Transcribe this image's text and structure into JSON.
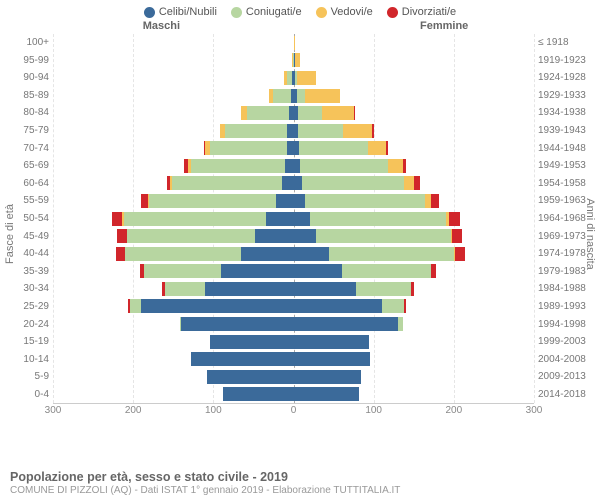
{
  "legend": [
    {
      "label": "Celibi/Nubili",
      "color": "#3b6a9a"
    },
    {
      "label": "Coniugati/e",
      "color": "#b7d6a1"
    },
    {
      "label": "Vedovi/e",
      "color": "#f6c35a"
    },
    {
      "label": "Divorziati/e",
      "color": "#d1262b"
    }
  ],
  "gender": {
    "male": "Maschi",
    "female": "Femmine"
  },
  "axis": {
    "left_title": "Fasce di età",
    "right_title": "Anni di nascita",
    "x_ticks": [
      300,
      200,
      100,
      0,
      100,
      200,
      300
    ],
    "x_max": 300
  },
  "age_labels": [
    "100+",
    "95-99",
    "90-94",
    "85-89",
    "80-84",
    "75-79",
    "70-74",
    "65-69",
    "60-64",
    "55-59",
    "50-54",
    "45-49",
    "40-44",
    "35-39",
    "30-34",
    "25-29",
    "20-24",
    "15-19",
    "10-14",
    "5-9",
    "0-4"
  ],
  "birth_labels": [
    "≤ 1918",
    "1919-1923",
    "1924-1928",
    "1929-1933",
    "1934-1938",
    "1939-1943",
    "1944-1948",
    "1949-1953",
    "1954-1958",
    "1959-1963",
    "1964-1968",
    "1969-1973",
    "1974-1978",
    "1979-1983",
    "1984-1988",
    "1989-1993",
    "1994-1998",
    "1999-2003",
    "2004-2008",
    "2009-2013",
    "2014-2018"
  ],
  "rows": [
    {
      "m": {
        "s": 0,
        "c": 0,
        "w": 0,
        "d": 0
      },
      "f": {
        "s": 0,
        "c": 0,
        "w": 2,
        "d": 0
      }
    },
    {
      "m": {
        "s": 0,
        "c": 1,
        "w": 1,
        "d": 0
      },
      "f": {
        "s": 2,
        "c": 0,
        "w": 6,
        "d": 0
      }
    },
    {
      "m": {
        "s": 2,
        "c": 6,
        "w": 4,
        "d": 0
      },
      "f": {
        "s": 2,
        "c": 2,
        "w": 24,
        "d": 0
      }
    },
    {
      "m": {
        "s": 3,
        "c": 22,
        "w": 6,
        "d": 0
      },
      "f": {
        "s": 4,
        "c": 10,
        "w": 44,
        "d": 0
      }
    },
    {
      "m": {
        "s": 6,
        "c": 52,
        "w": 8,
        "d": 0
      },
      "f": {
        "s": 5,
        "c": 30,
        "w": 40,
        "d": 2
      }
    },
    {
      "m": {
        "s": 8,
        "c": 78,
        "w": 6,
        "d": 0
      },
      "f": {
        "s": 6,
        "c": 56,
        "w": 36,
        "d": 2
      }
    },
    {
      "m": {
        "s": 8,
        "c": 96,
        "w": 6,
        "d": 2
      },
      "f": {
        "s": 7,
        "c": 86,
        "w": 22,
        "d": 3
      }
    },
    {
      "m": {
        "s": 10,
        "c": 118,
        "w": 4,
        "d": 4
      },
      "f": {
        "s": 8,
        "c": 110,
        "w": 18,
        "d": 4
      }
    },
    {
      "m": {
        "s": 14,
        "c": 138,
        "w": 2,
        "d": 4
      },
      "f": {
        "s": 10,
        "c": 128,
        "w": 12,
        "d": 8
      }
    },
    {
      "m": {
        "s": 22,
        "c": 158,
        "w": 2,
        "d": 8
      },
      "f": {
        "s": 14,
        "c": 150,
        "w": 8,
        "d": 10
      }
    },
    {
      "m": {
        "s": 34,
        "c": 178,
        "w": 2,
        "d": 12
      },
      "f": {
        "s": 20,
        "c": 170,
        "w": 4,
        "d": 14
      }
    },
    {
      "m": {
        "s": 48,
        "c": 160,
        "w": 0,
        "d": 12
      },
      "f": {
        "s": 28,
        "c": 168,
        "w": 2,
        "d": 12
      }
    },
    {
      "m": {
        "s": 66,
        "c": 144,
        "w": 0,
        "d": 12
      },
      "f": {
        "s": 44,
        "c": 156,
        "w": 2,
        "d": 12
      }
    },
    {
      "m": {
        "s": 90,
        "c": 96,
        "w": 0,
        "d": 6
      },
      "f": {
        "s": 60,
        "c": 112,
        "w": 0,
        "d": 6
      }
    },
    {
      "m": {
        "s": 110,
        "c": 50,
        "w": 0,
        "d": 4
      },
      "f": {
        "s": 78,
        "c": 68,
        "w": 0,
        "d": 4
      }
    },
    {
      "m": {
        "s": 190,
        "c": 14,
        "w": 0,
        "d": 2
      },
      "f": {
        "s": 110,
        "c": 28,
        "w": 0,
        "d": 2
      }
    },
    {
      "m": {
        "s": 140,
        "c": 2,
        "w": 0,
        "d": 0
      },
      "f": {
        "s": 130,
        "c": 6,
        "w": 0,
        "d": 0
      }
    },
    {
      "m": {
        "s": 104,
        "c": 0,
        "w": 0,
        "d": 0
      },
      "f": {
        "s": 94,
        "c": 0,
        "w": 0,
        "d": 0
      }
    },
    {
      "m": {
        "s": 128,
        "c": 0,
        "w": 0,
        "d": 0
      },
      "f": {
        "s": 96,
        "c": 0,
        "w": 0,
        "d": 0
      }
    },
    {
      "m": {
        "s": 108,
        "c": 0,
        "w": 0,
        "d": 0
      },
      "f": {
        "s": 84,
        "c": 0,
        "w": 0,
        "d": 0
      }
    },
    {
      "m": {
        "s": 88,
        "c": 0,
        "w": 0,
        "d": 0
      },
      "f": {
        "s": 82,
        "c": 0,
        "w": 0,
        "d": 0
      }
    }
  ],
  "colors": {
    "single": "#3b6a9a",
    "married": "#b7d6a1",
    "widowed": "#f6c35a",
    "divorced": "#d1262b",
    "grid": "#e5e5e5",
    "center": "#aaaaaa"
  },
  "footer": {
    "title": "Popolazione per età, sesso e stato civile - 2019",
    "sub": "COMUNE DI PIZZOLI (AQ) - Dati ISTAT 1° gennaio 2019 - Elaborazione TUTTITALIA.IT"
  }
}
